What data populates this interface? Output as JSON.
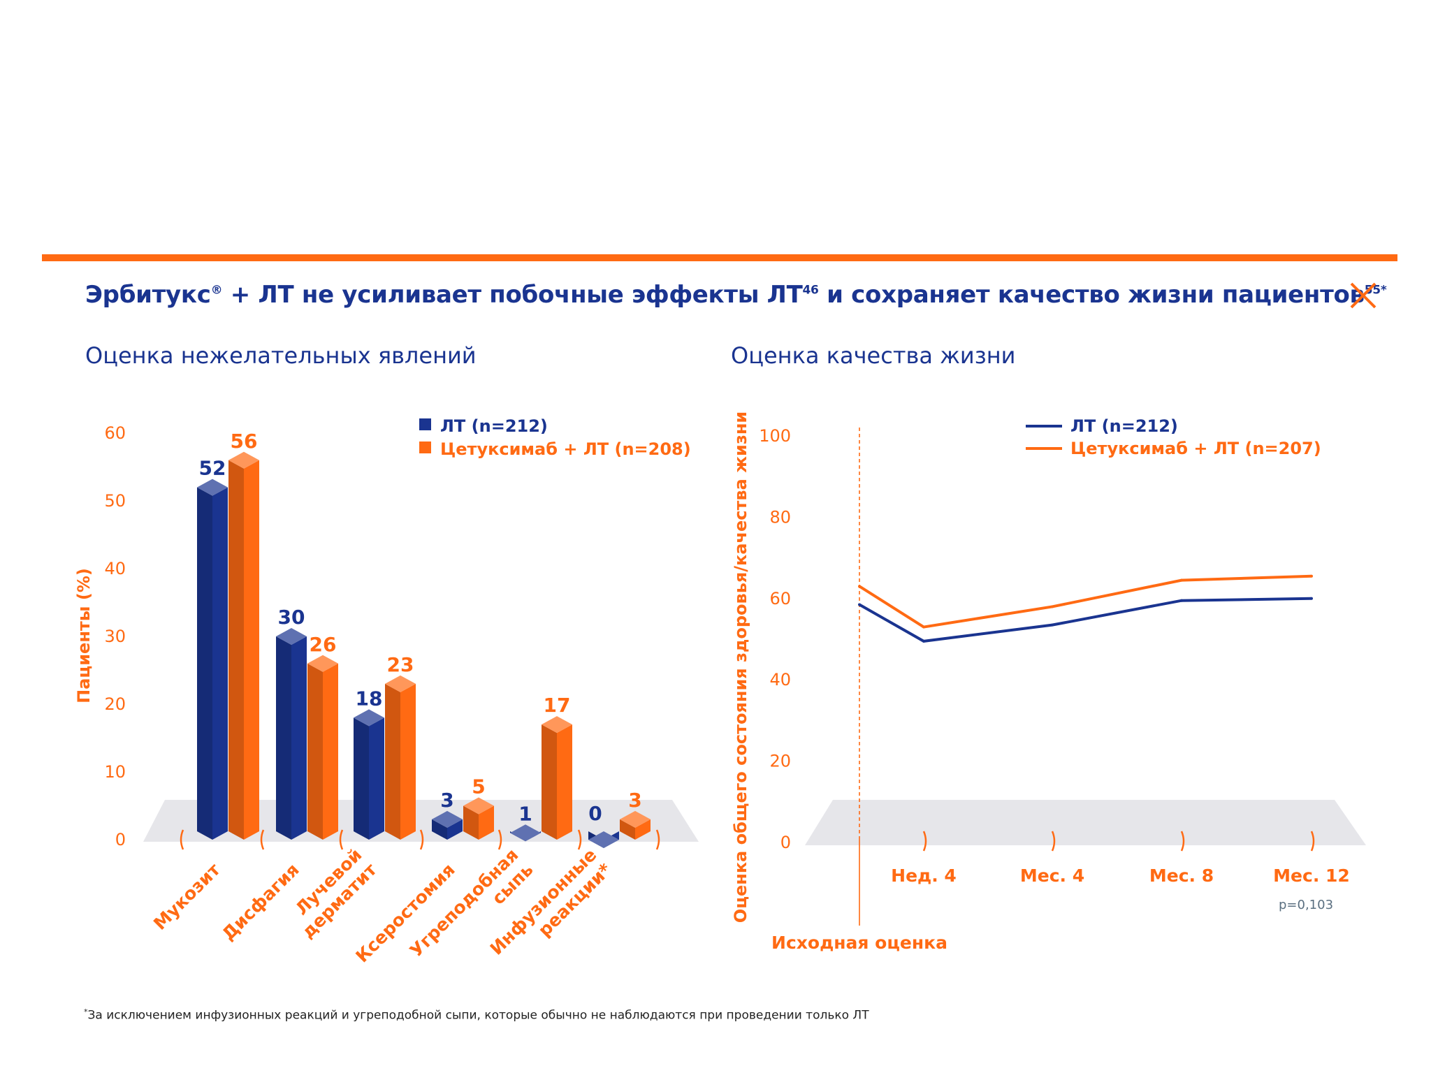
{
  "header": {
    "title_part1": "Эрбитукс",
    "title_reg": "®",
    "title_part2": " + ЛТ не усиливает побочные эффекты ЛТ",
    "title_sup1": "46",
    "title_part3": " и сохраняет качество жизни пациентов",
    "title_sup2": "55*",
    "close_icon": "close-icon"
  },
  "colors": {
    "blue": "#1a3490",
    "orange": "#ff6a13",
    "floor": "#e6e6ea"
  },
  "footnote": {
    "marker": "*",
    "text": "За исключением инфузионных реакций и угреподобной сыпи, которые обычно не наблюдаются при проведении только ЛТ"
  },
  "chart_data": [
    {
      "type": "bar",
      "title": "Оценка нежелательных явлений",
      "ylabel": "Пациенты (%)",
      "ylim": [
        0,
        60
      ],
      "yticks": [
        "0",
        "10",
        "20",
        "30",
        "40",
        "50",
        "60"
      ],
      "categories": [
        [
          "Мукозит"
        ],
        [
          "Дисфагия"
        ],
        [
          "Лучевой",
          "дерматит"
        ],
        [
          "Ксеростомия"
        ],
        [
          "Угреподобная",
          "сыпь"
        ],
        [
          "Инфузионные",
          "реакции*"
        ]
      ],
      "series": [
        {
          "name": "ЛТ (n=212)",
          "color": "#1a3490",
          "values": [
            52,
            30,
            18,
            3,
            1,
            0
          ]
        },
        {
          "name": "Цетуксимаб + ЛТ (n=208)",
          "color": "#ff6a13",
          "values": [
            56,
            26,
            23,
            5,
            17,
            3
          ]
        }
      ],
      "legend": "top-right",
      "grid": false
    },
    {
      "type": "line",
      "title": "Оценка качества жизни",
      "ylabel": "Оценка общего состояния здоровья/качества жизни",
      "ylim": [
        0,
        100
      ],
      "yticks": [
        "0",
        "20",
        "40",
        "60",
        "80",
        "100"
      ],
      "x": [
        "Исходная оценка",
        "Нед. 4",
        "Мес. 4",
        "Мес. 8",
        "Мес. 12"
      ],
      "series": [
        {
          "name": "ЛТ (n=212)",
          "color": "#1a3490",
          "values": [
            58.5,
            49.5,
            53.5,
            59.5,
            60
          ]
        },
        {
          "name": "Цетуксимаб + ЛТ (n=207)",
          "color": "#ff6a13",
          "values": [
            63,
            53,
            58,
            64.5,
            65.5
          ]
        }
      ],
      "annotation": "p=0,103",
      "legend": "top-right",
      "grid": false
    }
  ]
}
